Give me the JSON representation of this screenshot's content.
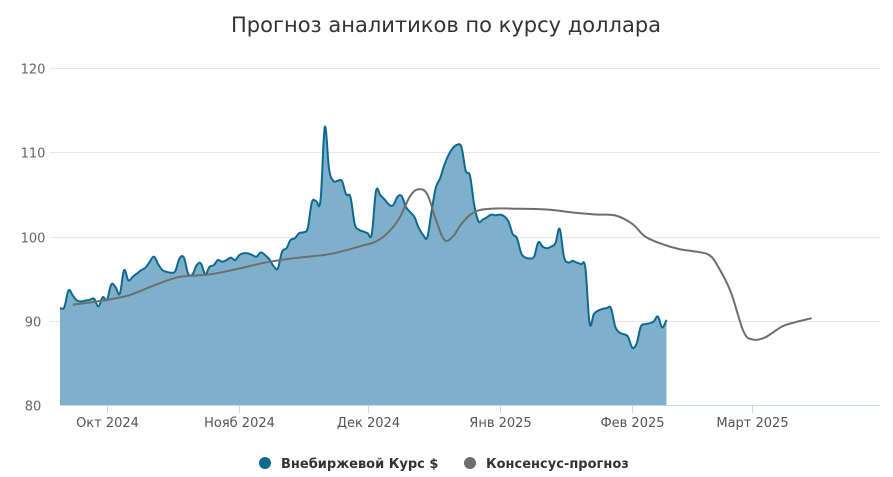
{
  "chart_data": {
    "type": "area",
    "title": "Прогноз аналитиков по курсу доллара",
    "xlabel": "",
    "ylabel": "",
    "ylim": [
      80,
      120
    ],
    "yticks": [
      "80",
      "90",
      "100",
      "110",
      "120"
    ],
    "xlim": [
      "2024-09-20",
      "2025-03-31"
    ],
    "xticks": [
      {
        "date": "2024-10-01",
        "label": "Окт 2024"
      },
      {
        "date": "2024-11-01",
        "label": "Нояб 2024"
      },
      {
        "date": "2024-12-01",
        "label": "Дек 2024"
      },
      {
        "date": "2025-01-01",
        "label": "Янв 2025"
      },
      {
        "date": "2025-02-01",
        "label": "Фев 2025"
      },
      {
        "date": "2025-03-01",
        "label": "Март 2025"
      }
    ],
    "grid": true,
    "legend_position": "bottom-center",
    "series": [
      {
        "name": "Внебиржевой Курс $",
        "type": "area",
        "color": "#0e6991",
        "fill": "#7eb0cc",
        "points": [
          [
            "2024-09-20",
            91.5
          ],
          [
            "2024-09-21",
            91.6
          ],
          [
            "2024-09-22",
            93.6
          ],
          [
            "2024-09-23",
            93.0
          ],
          [
            "2024-09-24",
            92.4
          ],
          [
            "2024-09-25",
            92.3
          ],
          [
            "2024-09-26",
            92.4
          ],
          [
            "2024-09-27",
            92.5
          ],
          [
            "2024-09-28",
            92.6
          ],
          [
            "2024-09-29",
            91.7
          ],
          [
            "2024-09-30",
            92.8
          ],
          [
            "2024-10-01",
            92.5
          ],
          [
            "2024-10-02",
            94.3
          ],
          [
            "2024-10-03",
            94.0
          ],
          [
            "2024-10-04",
            93.2
          ],
          [
            "2024-10-05",
            96.0
          ],
          [
            "2024-10-06",
            94.8
          ],
          [
            "2024-10-07",
            95.2
          ],
          [
            "2024-10-08",
            95.6
          ],
          [
            "2024-10-09",
            96.0
          ],
          [
            "2024-10-10",
            96.3
          ],
          [
            "2024-10-11",
            97.0
          ],
          [
            "2024-10-12",
            97.6
          ],
          [
            "2024-10-13",
            96.7
          ],
          [
            "2024-10-14",
            96.0
          ],
          [
            "2024-10-15",
            95.8
          ],
          [
            "2024-10-16",
            95.7
          ],
          [
            "2024-10-17",
            95.9
          ],
          [
            "2024-10-18",
            97.4
          ],
          [
            "2024-10-19",
            97.5
          ],
          [
            "2024-10-20",
            95.6
          ],
          [
            "2024-10-21",
            95.5
          ],
          [
            "2024-10-22",
            96.6
          ],
          [
            "2024-10-23",
            96.8
          ],
          [
            "2024-10-24",
            95.5
          ],
          [
            "2024-10-25",
            96.4
          ],
          [
            "2024-10-26",
            96.6
          ],
          [
            "2024-10-27",
            97.2
          ],
          [
            "2024-10-28",
            97.0
          ],
          [
            "2024-10-29",
            97.2
          ],
          [
            "2024-10-30",
            97.5
          ],
          [
            "2024-10-31",
            97.2
          ],
          [
            "2024-11-01",
            97.8
          ],
          [
            "2024-11-02",
            98.0
          ],
          [
            "2024-11-03",
            98.0
          ],
          [
            "2024-11-04",
            97.8
          ],
          [
            "2024-11-05",
            97.6
          ],
          [
            "2024-11-06",
            98.1
          ],
          [
            "2024-11-07",
            97.8
          ],
          [
            "2024-11-08",
            97.3
          ],
          [
            "2024-11-09",
            96.5
          ],
          [
            "2024-11-10",
            96.2
          ],
          [
            "2024-11-11",
            98.2
          ],
          [
            "2024-11-12",
            98.6
          ],
          [
            "2024-11-13",
            99.6
          ],
          [
            "2024-11-14",
            99.8
          ],
          [
            "2024-11-15",
            100.4
          ],
          [
            "2024-11-16",
            100.5
          ],
          [
            "2024-11-17",
            101.0
          ],
          [
            "2024-11-18",
            104.1
          ],
          [
            "2024-11-19",
            104.2
          ],
          [
            "2024-11-20",
            104.3
          ],
          [
            "2024-11-21",
            113.0
          ],
          [
            "2024-11-22",
            108.0
          ],
          [
            "2024-11-23",
            106.6
          ],
          [
            "2024-11-24",
            106.6
          ],
          [
            "2024-11-25",
            106.6
          ],
          [
            "2024-11-26",
            105.0
          ],
          [
            "2024-11-27",
            104.7
          ],
          [
            "2024-11-28",
            101.5
          ],
          [
            "2024-11-29",
            100.8
          ],
          [
            "2024-11-30",
            100.6
          ],
          [
            "2024-12-01",
            100.4
          ],
          [
            "2024-12-02",
            100.3
          ],
          [
            "2024-12-03",
            105.4
          ],
          [
            "2024-12-04",
            104.9
          ],
          [
            "2024-12-05",
            104.4
          ],
          [
            "2024-12-06",
            103.8
          ],
          [
            "2024-12-07",
            103.7
          ],
          [
            "2024-12-08",
            104.7
          ],
          [
            "2024-12-09",
            104.8
          ],
          [
            "2024-12-10",
            103.5
          ],
          [
            "2024-12-11",
            102.9
          ],
          [
            "2024-12-12",
            102.3
          ],
          [
            "2024-12-13",
            101.0
          ],
          [
            "2024-12-14",
            100.2
          ],
          [
            "2024-12-15",
            99.9
          ],
          [
            "2024-12-16",
            103.0
          ],
          [
            "2024-12-17",
            105.8
          ],
          [
            "2024-12-18",
            106.9
          ],
          [
            "2024-12-19",
            108.5
          ],
          [
            "2024-12-20",
            109.7
          ],
          [
            "2024-12-21",
            110.5
          ],
          [
            "2024-12-22",
            110.9
          ],
          [
            "2024-12-23",
            110.6
          ],
          [
            "2024-12-24",
            107.8
          ],
          [
            "2024-12-25",
            107.2
          ],
          [
            "2024-12-26",
            103.7
          ],
          [
            "2024-12-27",
            101.8
          ],
          [
            "2024-12-28",
            102.0
          ],
          [
            "2024-12-29",
            102.3
          ],
          [
            "2024-12-30",
            102.6
          ],
          [
            "2024-12-31",
            102.5
          ],
          [
            "2025-01-01",
            102.6
          ],
          [
            "2025-01-02",
            102.4
          ],
          [
            "2025-01-03",
            101.8
          ],
          [
            "2025-01-04",
            100.3
          ],
          [
            "2025-01-05",
            99.8
          ],
          [
            "2025-01-06",
            98.0
          ],
          [
            "2025-01-07",
            97.5
          ],
          [
            "2025-01-08",
            97.4
          ],
          [
            "2025-01-09",
            97.6
          ],
          [
            "2025-01-10",
            99.3
          ],
          [
            "2025-01-11",
            98.8
          ],
          [
            "2025-01-12",
            98.6
          ],
          [
            "2025-01-13",
            98.8
          ],
          [
            "2025-01-14",
            99.2
          ],
          [
            "2025-01-15",
            100.9
          ],
          [
            "2025-01-16",
            97.6
          ],
          [
            "2025-01-17",
            96.9
          ],
          [
            "2025-01-18",
            97.1
          ],
          [
            "2025-01-19",
            96.9
          ],
          [
            "2025-01-20",
            96.7
          ],
          [
            "2025-01-21",
            96.3
          ],
          [
            "2025-01-22",
            89.7
          ],
          [
            "2025-01-23",
            90.8
          ],
          [
            "2025-01-24",
            91.2
          ],
          [
            "2025-01-25",
            91.4
          ],
          [
            "2025-01-26",
            91.5
          ],
          [
            "2025-01-27",
            91.5
          ],
          [
            "2025-01-28",
            89.3
          ],
          [
            "2025-01-29",
            88.6
          ],
          [
            "2025-01-30",
            88.4
          ],
          [
            "2025-01-31",
            88.1
          ],
          [
            "2025-02-01",
            86.8
          ],
          [
            "2025-02-02",
            87.3
          ],
          [
            "2025-02-03",
            89.3
          ],
          [
            "2025-02-04",
            89.6
          ],
          [
            "2025-02-05",
            89.7
          ],
          [
            "2025-02-06",
            89.9
          ],
          [
            "2025-02-07",
            90.5
          ],
          [
            "2025-02-08",
            89.2
          ],
          [
            "2025-02-09",
            90.1
          ]
        ]
      },
      {
        "name": "Консенсус-прогноз",
        "type": "line",
        "color": "#6e6e6e",
        "points": [
          [
            "2024-09-23",
            91.9
          ],
          [
            "2024-09-30",
            92.4
          ],
          [
            "2024-10-06",
            93.0
          ],
          [
            "2024-10-12",
            94.2
          ],
          [
            "2024-10-18",
            95.2
          ],
          [
            "2024-10-25",
            95.5
          ],
          [
            "2024-11-01",
            96.2
          ],
          [
            "2024-11-08",
            97.0
          ],
          [
            "2024-11-15",
            97.5
          ],
          [
            "2024-11-22",
            97.9
          ],
          [
            "2024-11-29",
            98.8
          ],
          [
            "2024-12-04",
            99.7
          ],
          [
            "2024-12-08",
            101.8
          ],
          [
            "2024-12-11",
            104.8
          ],
          [
            "2024-12-13",
            105.6
          ],
          [
            "2024-12-15",
            105.0
          ],
          [
            "2024-12-17",
            102.0
          ],
          [
            "2024-12-19",
            99.6
          ],
          [
            "2024-12-21",
            100.0
          ],
          [
            "2024-12-23",
            101.5
          ],
          [
            "2024-12-26",
            102.9
          ],
          [
            "2024-12-30",
            103.3
          ],
          [
            "2025-01-05",
            103.3
          ],
          [
            "2025-01-12",
            103.2
          ],
          [
            "2025-01-19",
            102.8
          ],
          [
            "2025-01-24",
            102.6
          ],
          [
            "2025-01-28",
            102.5
          ],
          [
            "2025-02-01",
            101.5
          ],
          [
            "2025-02-04",
            100.0
          ],
          [
            "2025-02-08",
            99.1
          ],
          [
            "2025-02-12",
            98.5
          ],
          [
            "2025-02-16",
            98.2
          ],
          [
            "2025-02-19",
            97.8
          ],
          [
            "2025-02-21",
            96.5
          ],
          [
            "2025-02-24",
            93.5
          ],
          [
            "2025-02-27",
            88.8
          ],
          [
            "2025-03-01",
            87.8
          ],
          [
            "2025-03-04",
            88.0
          ],
          [
            "2025-03-08",
            89.3
          ],
          [
            "2025-03-11",
            89.8
          ],
          [
            "2025-03-15",
            90.3
          ]
        ]
      }
    ]
  }
}
